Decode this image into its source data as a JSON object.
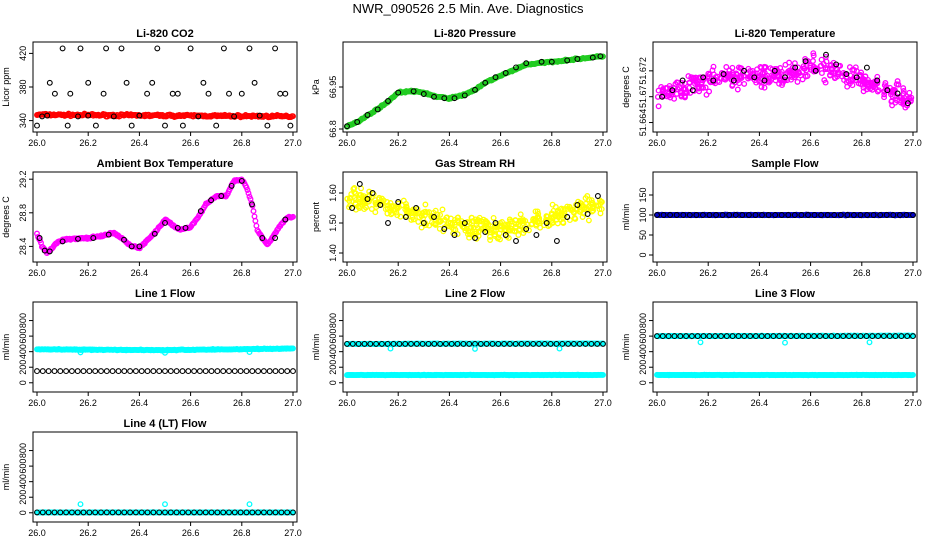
{
  "page_title": "NWR_090526  2.5 Min. Ave. Diagnostics",
  "colors": {
    "red": "#ff0000",
    "green": "#22cc22",
    "magenta": "#ff00ff",
    "yellow": "#ffff00",
    "blue": "#0000cc",
    "cyan": "#00ffff",
    "black": "#000000"
  },
  "chart_data": [
    {
      "id": "li820-co2",
      "type": "scatter",
      "title": "Li-820 CO2",
      "ylabel": "Licor ppm",
      "xlim": [
        26.0,
        27.0
      ],
      "ylim": [
        330,
        430
      ],
      "yticks": [
        340,
        380,
        420
      ],
      "xticks": [
        "26.0",
        "26.2",
        "26.4",
        "26.6",
        "26.8",
        "27.0"
      ],
      "series": [
        {
          "name": "dense",
          "color": "red",
          "style": "band",
          "x": [
            26.0,
            27.0
          ],
          "y": [
            347,
            345
          ],
          "noise": 2
        },
        {
          "name": "black",
          "color": "black",
          "style": "points",
          "x": [
            26.0,
            26.02,
            26.04,
            26.07,
            26.1,
            26.12,
            26.16,
            26.17,
            26.2,
            26.23,
            26.27,
            26.3,
            26.33,
            26.37,
            26.4,
            26.43,
            26.47,
            26.5,
            26.53,
            26.57,
            26.6,
            26.63,
            26.67,
            26.7,
            26.73,
            26.77,
            26.8,
            26.83,
            26.87,
            26.9,
            26.93,
            26.97,
            26.99
          ],
          "y": [
            334,
            345,
            346,
            372,
            426,
            334,
            345,
            426,
            346,
            334,
            426,
            345,
            426,
            334,
            346,
            372,
            426,
            334,
            372,
            334,
            426,
            345,
            372,
            334,
            426,
            345,
            372,
            426,
            346,
            334,
            426,
            372,
            334
          ]
        },
        {
          "name": "black-upper",
          "color": "black",
          "style": "points",
          "x": [
            26.05,
            26.13,
            26.2,
            26.26,
            26.35,
            26.45,
            26.55,
            26.65,
            26.75,
            26.85,
            26.95
          ],
          "y": [
            385,
            372,
            385,
            372,
            385,
            385,
            372,
            385,
            372,
            385,
            372
          ]
        }
      ]
    },
    {
      "id": "li820-pressure",
      "type": "scatter",
      "title": "Li-820 Pressure",
      "ylabel": "kPa",
      "xlim": [
        26.0,
        27.0
      ],
      "ylim": [
        66.8,
        67.1
      ],
      "yticks": [
        66.8,
        66.95
      ],
      "xticks": [
        "26.0",
        "26.2",
        "26.4",
        "26.6",
        "26.8",
        "27.0"
      ],
      "series": [
        {
          "name": "dense",
          "color": "green",
          "style": "band",
          "x": [
            26.0,
            26.05,
            26.1,
            26.15,
            26.2,
            26.25,
            26.3,
            26.35,
            26.4,
            26.45,
            26.5,
            26.55,
            26.6,
            26.65,
            26.7,
            26.75,
            26.8,
            26.85,
            26.9,
            26.95,
            27.0
          ],
          "y": [
            66.81,
            66.83,
            66.86,
            66.89,
            66.93,
            66.935,
            66.93,
            66.915,
            66.91,
            66.92,
            66.94,
            66.97,
            66.99,
            67.01,
            67.03,
            67.035,
            67.04,
            67.045,
            67.05,
            67.055,
            67.06
          ],
          "noise": 0.004
        },
        {
          "name": "black",
          "color": "black",
          "style": "points",
          "x": [
            26.0,
            26.04,
            26.08,
            26.12,
            26.16,
            26.2,
            26.26,
            26.3,
            26.34,
            26.38,
            26.42,
            26.46,
            26.5,
            26.54,
            26.58,
            26.62,
            26.66,
            26.7,
            26.76,
            26.8,
            26.86,
            26.9,
            26.96,
            26.99
          ],
          "y": [
            66.81,
            66.825,
            66.85,
            66.87,
            66.9,
            66.93,
            66.935,
            66.925,
            66.915,
            66.91,
            66.91,
            66.92,
            66.94,
            66.965,
            66.985,
            67.0,
            67.02,
            67.035,
            67.04,
            67.04,
            67.045,
            67.05,
            67.055,
            67.06
          ]
        }
      ]
    },
    {
      "id": "li820-temperature",
      "type": "scatter",
      "title": "Li-820 Temperature",
      "ylabel": "degrees C",
      "xlim": [
        26.0,
        27.0
      ],
      "ylim": [
        51.663,
        51.676
      ],
      "yticks": [
        51.664,
        51.668,
        51.672
      ],
      "ytick_labels": [
        "51.664",
        "51.67",
        "51.672"
      ],
      "xticks": [
        "26.0",
        "26.2",
        "26.4",
        "26.6",
        "26.8",
        "27.0"
      ],
      "series": [
        {
          "name": "dense",
          "color": "magenta",
          "style": "scatter",
          "x": [
            26.0,
            26.1,
            26.2,
            26.3,
            26.4,
            26.5,
            26.6,
            26.7,
            26.8,
            26.9,
            27.0
          ],
          "y": [
            51.668,
            51.6695,
            51.6705,
            51.671,
            51.671,
            51.6715,
            51.6725,
            51.672,
            51.6705,
            51.669,
            51.6675
          ],
          "noise": 0.0025
        },
        {
          "name": "black",
          "color": "black",
          "style": "points",
          "x": [
            26.02,
            26.06,
            26.1,
            26.14,
            26.18,
            26.22,
            26.26,
            26.3,
            26.34,
            26.38,
            26.42,
            26.46,
            26.5,
            26.54,
            26.58,
            26.62,
            26.66,
            26.7,
            26.74,
            26.78,
            26.82,
            26.86,
            26.9,
            26.94,
            26.98
          ],
          "y": [
            51.668,
            51.669,
            51.6705,
            51.669,
            51.671,
            51.6705,
            51.6715,
            51.6705,
            51.672,
            51.671,
            51.6705,
            51.672,
            51.671,
            51.6725,
            51.6735,
            51.672,
            51.6745,
            51.673,
            51.6715,
            51.671,
            51.6725,
            51.6705,
            51.669,
            51.6685,
            51.667
          ]
        }
      ]
    },
    {
      "id": "ambient-box-temperature",
      "type": "scatter",
      "title": "Ambient Box Temperature",
      "ylabel": "degrees C",
      "xlim": [
        26.0,
        27.0
      ],
      "ylim": [
        28.25,
        29.25
      ],
      "yticks": [
        28.4,
        28.8,
        29.2
      ],
      "xticks": [
        "26.0",
        "26.2",
        "26.4",
        "26.6",
        "26.8",
        "27.0"
      ],
      "series": [
        {
          "name": "dense",
          "color": "magenta",
          "style": "band",
          "x": [
            26.0,
            26.02,
            26.04,
            26.06,
            26.08,
            26.1,
            26.15,
            26.2,
            26.25,
            26.3,
            26.33,
            26.36,
            26.4,
            26.44,
            26.47,
            26.5,
            26.53,
            26.56,
            26.6,
            26.63,
            26.66,
            26.7,
            26.74,
            26.77,
            26.8,
            26.82,
            26.84,
            26.86,
            26.88,
            26.9,
            26.92,
            26.95,
            26.98
          ],
          "y": [
            28.55,
            28.4,
            28.32,
            28.38,
            28.45,
            28.48,
            28.49,
            28.5,
            28.52,
            28.56,
            28.5,
            28.42,
            28.38,
            28.5,
            28.6,
            28.72,
            28.65,
            28.6,
            28.63,
            28.75,
            28.9,
            29.0,
            29.0,
            29.18,
            29.2,
            29.1,
            28.9,
            28.6,
            28.5,
            28.42,
            28.5,
            28.65,
            28.75
          ],
          "noise": 0.015
        },
        {
          "name": "black",
          "color": "black",
          "style": "points",
          "x": [
            26.01,
            26.03,
            26.05,
            26.1,
            26.16,
            26.22,
            26.28,
            26.34,
            26.37,
            26.4,
            26.46,
            26.5,
            26.55,
            26.58,
            26.64,
            26.68,
            26.72,
            26.76,
            26.8,
            26.84,
            26.88,
            26.93,
            26.97
          ],
          "y": [
            28.5,
            28.35,
            28.34,
            28.46,
            28.49,
            28.5,
            28.54,
            28.48,
            28.4,
            28.4,
            28.55,
            28.68,
            28.62,
            28.62,
            28.82,
            28.95,
            29.0,
            29.12,
            29.18,
            28.9,
            28.5,
            28.5,
            28.72
          ]
        }
      ]
    },
    {
      "id": "gas-stream-rh",
      "type": "scatter",
      "title": "Gas Stream RH",
      "ylabel": "percent",
      "xlim": [
        26.0,
        27.0
      ],
      "ylim": [
        1.38,
        1.66
      ],
      "yticks": [
        1.4,
        1.5,
        1.6
      ],
      "ytick_labels": [
        "1.40",
        "1.50",
        "1.60"
      ],
      "xticks": [
        "26.0",
        "26.2",
        "26.4",
        "26.6",
        "26.8",
        "27.0"
      ],
      "series": [
        {
          "name": "dense",
          "color": "yellow",
          "style": "scatter",
          "x": [
            26.0,
            26.1,
            26.2,
            26.3,
            26.4,
            26.5,
            26.6,
            26.7,
            26.8,
            26.9,
            27.0
          ],
          "y": [
            1.58,
            1.57,
            1.55,
            1.52,
            1.5,
            1.48,
            1.48,
            1.5,
            1.52,
            1.55,
            1.56
          ],
          "noise": 0.05
        },
        {
          "name": "black",
          "color": "black",
          "style": "points",
          "x": [
            26.02,
            26.05,
            26.08,
            26.1,
            26.13,
            26.16,
            26.2,
            26.23,
            26.27,
            26.3,
            26.34,
            26.38,
            26.42,
            26.46,
            26.5,
            26.54,
            26.58,
            26.62,
            26.66,
            26.7,
            26.74,
            26.78,
            26.82,
            26.86,
            26.9,
            26.94,
            26.98
          ],
          "y": [
            1.55,
            1.63,
            1.58,
            1.6,
            1.56,
            1.5,
            1.57,
            1.52,
            1.55,
            1.5,
            1.52,
            1.48,
            1.46,
            1.5,
            1.45,
            1.47,
            1.5,
            1.46,
            1.44,
            1.48,
            1.46,
            1.5,
            1.44,
            1.52,
            1.56,
            1.53,
            1.59
          ]
        }
      ]
    },
    {
      "id": "sample-flow",
      "type": "scatter",
      "title": "Sample Flow",
      "ylabel": "ml/min",
      "xlim": [
        26.0,
        27.0
      ],
      "ylim": [
        -10,
        200
      ],
      "yticks": [
        0,
        50,
        100,
        150
      ],
      "xticks": [
        "26.0",
        "26.2",
        "26.4",
        "26.6",
        "26.8",
        "27.0"
      ],
      "series": [
        {
          "name": "dense",
          "color": "blue",
          "style": "band",
          "x": [
            26.0,
            27.0
          ],
          "y": [
            100,
            100
          ],
          "noise": 1.2
        },
        {
          "name": "black",
          "color": "black",
          "style": "row",
          "y": 100,
          "count": 40
        }
      ]
    },
    {
      "id": "line-1-flow",
      "type": "scatter",
      "title": "Line 1 Flow",
      "ylabel": "ml/min",
      "xlim": [
        26.0,
        27.0
      ],
      "ylim": [
        -80,
        1000
      ],
      "yticks": [
        0,
        200,
        400,
        600,
        800
      ],
      "xticks": [
        "26.0",
        "26.2",
        "26.4",
        "26.6",
        "26.8",
        "27.0"
      ],
      "series": [
        {
          "name": "dense",
          "color": "cyan",
          "style": "band",
          "x": [
            26.0,
            26.5,
            27.0
          ],
          "y": [
            430,
            420,
            440
          ],
          "noise": 8
        },
        {
          "name": "black",
          "color": "black",
          "style": "row",
          "y": 150,
          "count": 45
        },
        {
          "name": "outliers",
          "color": "cyan",
          "style": "points",
          "x": [
            26.17,
            26.5,
            26.83
          ],
          "y": [
            390,
            385,
            395
          ]
        }
      ]
    },
    {
      "id": "line-2-flow",
      "type": "scatter",
      "title": "Line 2 Flow",
      "ylabel": "ml/min",
      "xlim": [
        26.0,
        27.0
      ],
      "ylim": [
        -80,
        1000
      ],
      "yticks": [
        0,
        200,
        400,
        600,
        800
      ],
      "xticks": [
        "26.0",
        "26.2",
        "26.4",
        "26.6",
        "26.8",
        "27.0"
      ],
      "series": [
        {
          "name": "dense-upper",
          "color": "cyan",
          "style": "band",
          "x": [
            26.0,
            27.0
          ],
          "y": [
            500,
            505
          ],
          "noise": 5
        },
        {
          "name": "dense-lower",
          "color": "cyan",
          "style": "band",
          "x": [
            26.0,
            27.0
          ],
          "y": [
            100,
            100
          ],
          "noise": 5
        },
        {
          "name": "black",
          "color": "black",
          "style": "row",
          "y": 500,
          "count": 45
        },
        {
          "name": "outliers",
          "color": "cyan",
          "style": "points",
          "x": [
            26.17,
            26.5,
            26.83
          ],
          "y": [
            440,
            435,
            440
          ]
        }
      ]
    },
    {
      "id": "line-3-flow",
      "type": "scatter",
      "title": "Line 3 Flow",
      "ylabel": "ml/min",
      "xlim": [
        26.0,
        27.0
      ],
      "ylim": [
        -80,
        1000
      ],
      "yticks": [
        0,
        200,
        400,
        600,
        800
      ],
      "xticks": [
        "26.0",
        "26.2",
        "26.4",
        "26.6",
        "26.8",
        "27.0"
      ],
      "series": [
        {
          "name": "dense-upper",
          "color": "cyan",
          "style": "band",
          "x": [
            26.0,
            27.0
          ],
          "y": [
            600,
            605
          ],
          "noise": 5
        },
        {
          "name": "dense-lower",
          "color": "cyan",
          "style": "band",
          "x": [
            26.0,
            27.0
          ],
          "y": [
            100,
            100
          ],
          "noise": 5
        },
        {
          "name": "black",
          "color": "black",
          "style": "row",
          "y": 600,
          "count": 45
        },
        {
          "name": "outliers",
          "color": "cyan",
          "style": "points",
          "x": [
            26.17,
            26.5,
            26.83
          ],
          "y": [
            520,
            515,
            520
          ]
        }
      ]
    },
    {
      "id": "line-4-lt-flow",
      "type": "scatter",
      "title": "Line 4 (LT) Flow",
      "ylabel": "ml/min",
      "xlim": [
        26.0,
        27.0
      ],
      "ylim": [
        -80,
        1000
      ],
      "yticks": [
        0,
        200,
        400,
        600,
        800
      ],
      "xticks": [
        "26.0",
        "26.2",
        "26.4",
        "26.6",
        "26.8",
        "27.0"
      ],
      "series": [
        {
          "name": "dense",
          "color": "cyan",
          "style": "band",
          "x": [
            26.0,
            27.0
          ],
          "y": [
            5,
            5
          ],
          "noise": 3
        },
        {
          "name": "black",
          "color": "black",
          "style": "row",
          "y": 5,
          "count": 45
        },
        {
          "name": "outliers",
          "color": "cyan",
          "style": "points",
          "x": [
            26.17,
            26.5,
            26.83
          ],
          "y": [
            110,
            110,
            110
          ]
        }
      ]
    }
  ]
}
